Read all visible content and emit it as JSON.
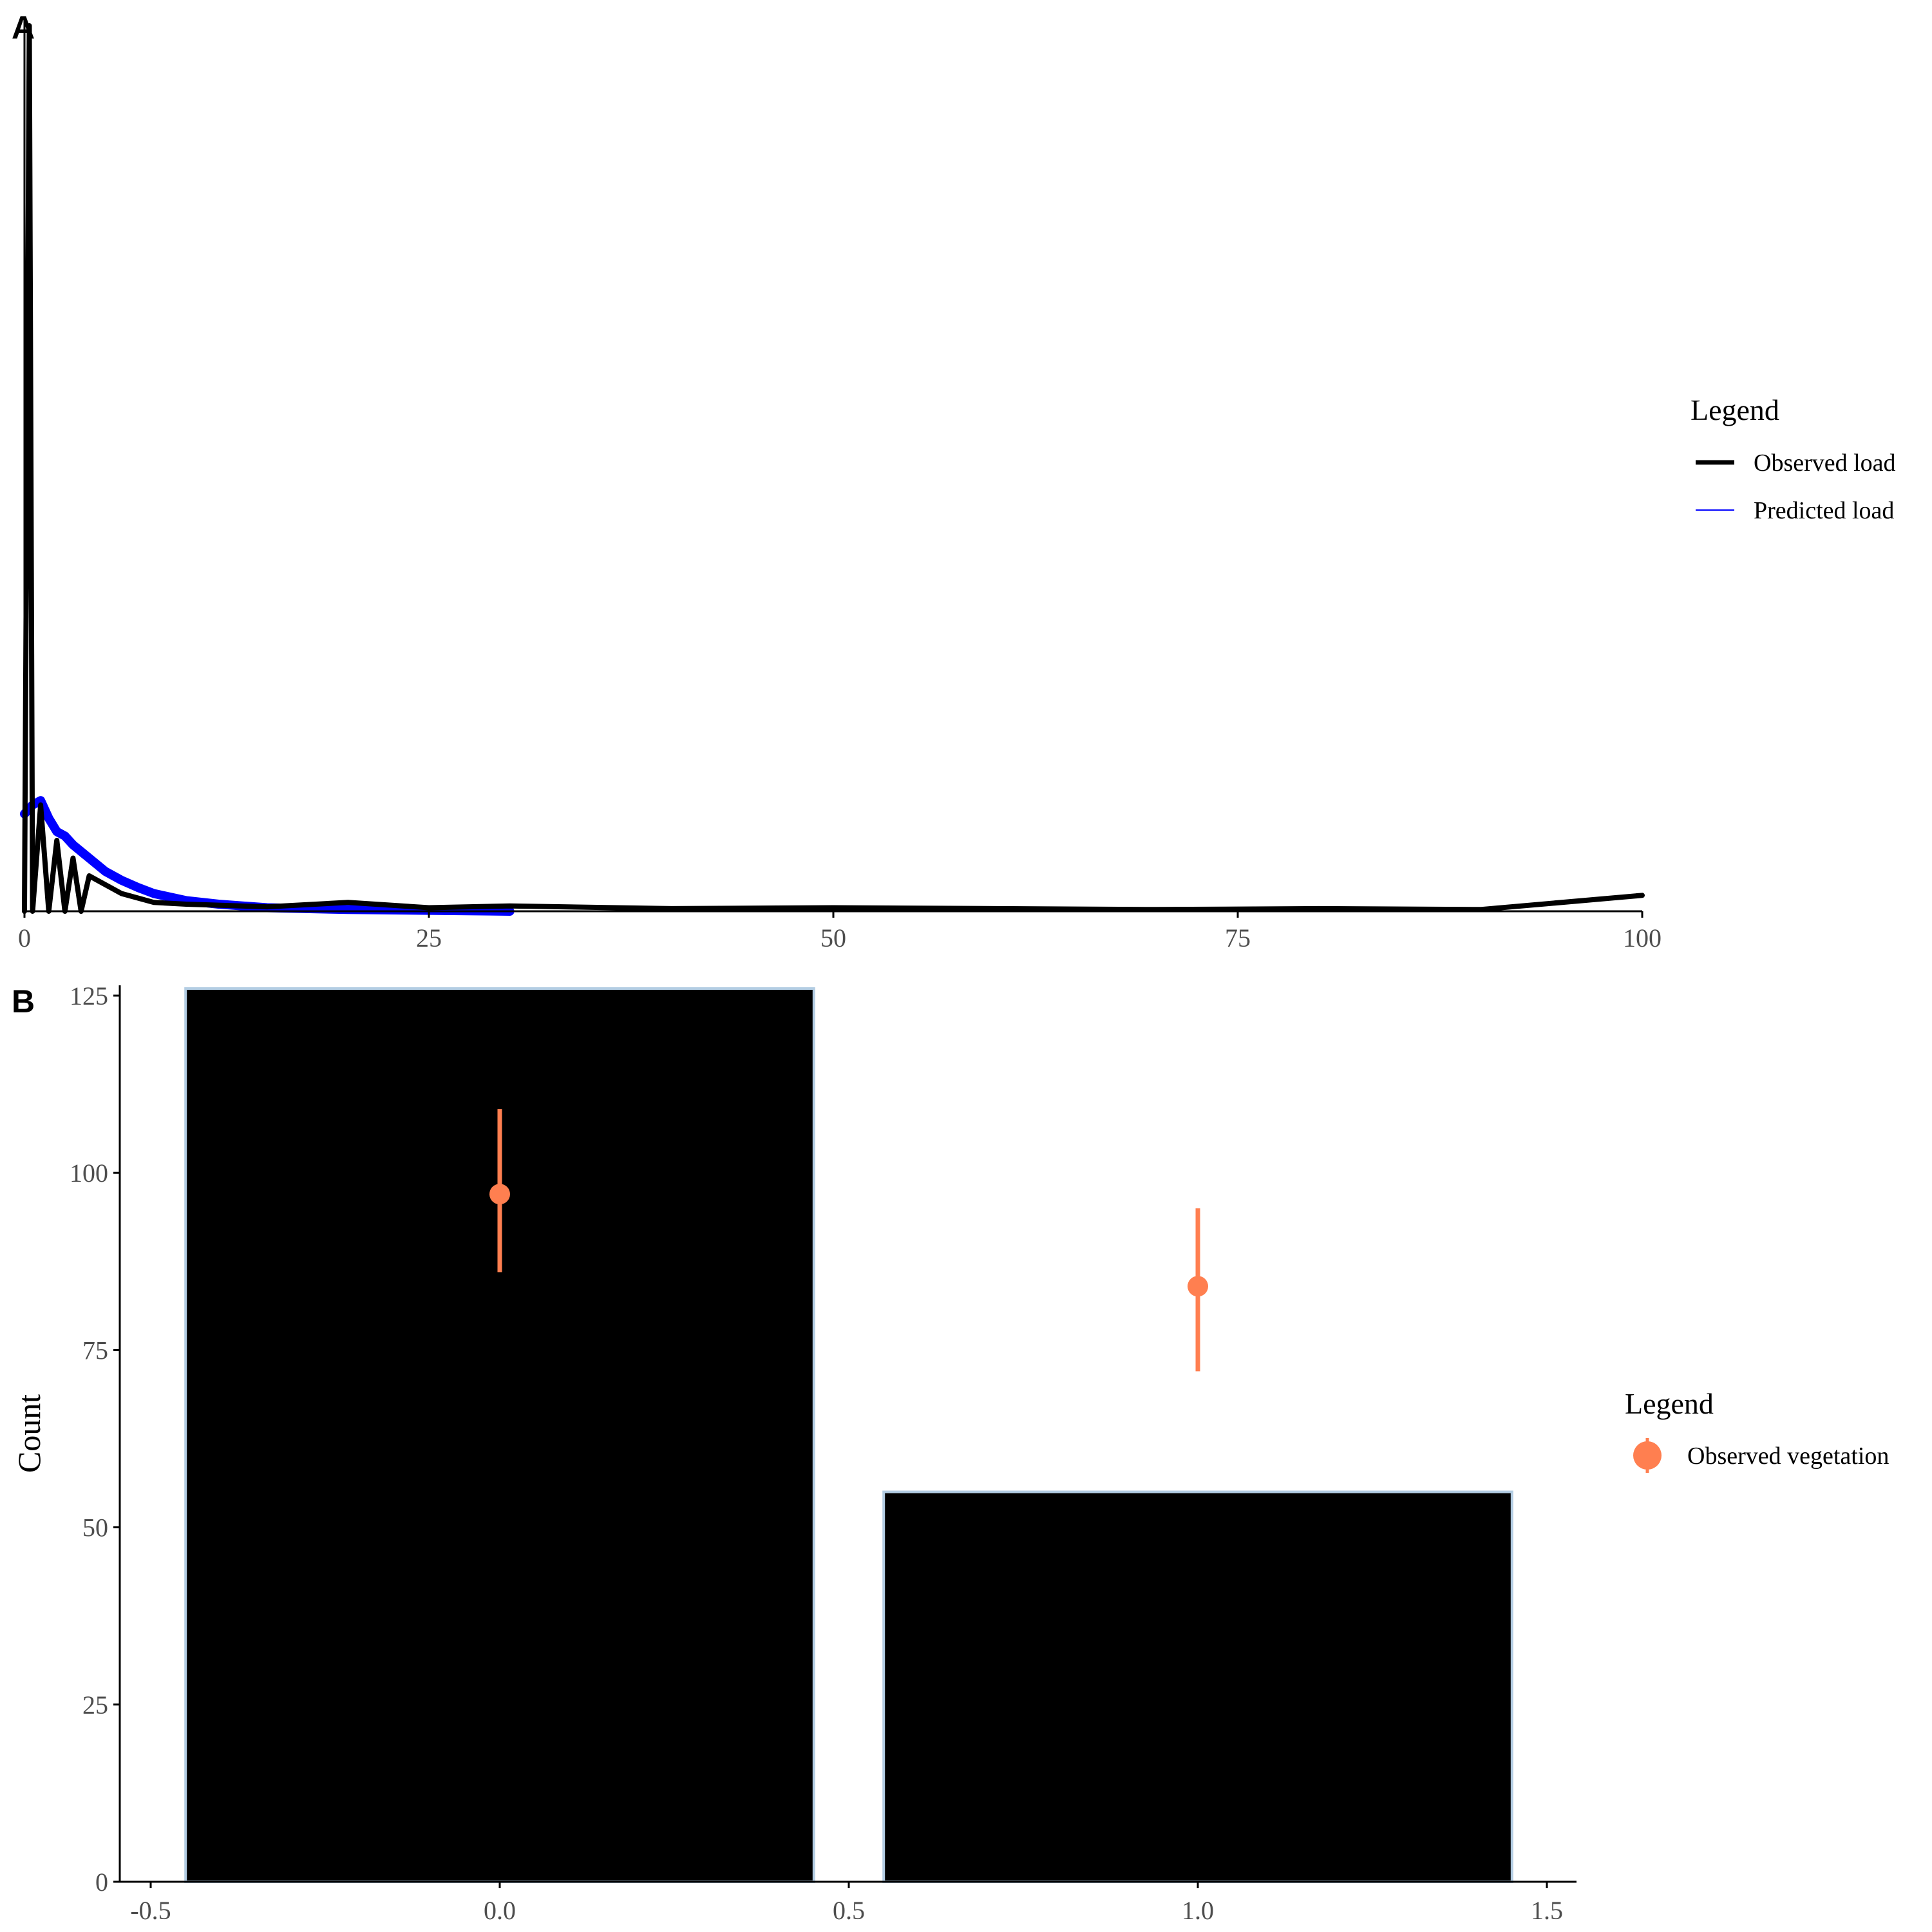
{
  "panels": {
    "a": {
      "tag": "A"
    },
    "b": {
      "tag": "B"
    }
  },
  "colors": {
    "observed": "#000000",
    "predicted": "#0000ff",
    "vegetation": "#ff7f50",
    "bar_fill": "#000000",
    "bar_outline": "#b3cde3",
    "tick_text": "#4d4d4d"
  },
  "chart_data": [
    {
      "type": "line",
      "panel": "A",
      "title": "",
      "xlabel": "",
      "ylabel": "",
      "xlim": [
        0,
        100
      ],
      "ylim": [
        0,
        1
      ],
      "x_ticks": [
        "0",
        "25",
        "50",
        "75",
        "100"
      ],
      "y_ticks": [],
      "grid": false,
      "legend": {
        "title": "Legend",
        "position": "right"
      },
      "series": [
        {
          "name": "Observed load",
          "x": [
            0,
            0.3,
            0.5,
            1,
            1.5,
            2,
            2.5,
            3,
            3.5,
            4,
            5,
            6,
            7,
            8,
            10,
            15,
            20,
            25,
            30,
            40,
            50,
            60,
            70,
            80,
            90,
            100
          ],
          "y": [
            0,
            1.0,
            0.0,
            0.12,
            0.0,
            0.08,
            0.0,
            0.06,
            0.0,
            0.04,
            0.03,
            0.02,
            0.015,
            0.01,
            0.008,
            0.005,
            0.01,
            0.004,
            0.006,
            0.003,
            0.004,
            0.003,
            0.002,
            0.003,
            0.002,
            0.018
          ]
        },
        {
          "name": "Predicted load",
          "x": [
            0,
            0.5,
            1,
            1.5,
            2,
            2.5,
            3,
            4,
            5,
            6,
            7,
            8,
            10,
            12,
            15,
            20,
            25,
            30
          ],
          "y": [
            0.11,
            0.12,
            0.125,
            0.105,
            0.09,
            0.085,
            0.075,
            0.06,
            0.045,
            0.035,
            0.027,
            0.02,
            0.012,
            0.008,
            0.004,
            0.002,
            0.001,
            0.0
          ]
        }
      ]
    },
    {
      "type": "bar",
      "panel": "B",
      "title": "",
      "xlabel": "",
      "ylabel": "Count",
      "xlim": [
        -0.5,
        1.5
      ],
      "ylim": [
        0,
        126
      ],
      "x_ticks": [
        "-0.5",
        "0.0",
        "0.5",
        "1.0",
        "1.5"
      ],
      "y_ticks": [
        "0",
        "25",
        "50",
        "75",
        "100",
        "125"
      ],
      "grid": false,
      "legend": {
        "title": "Legend",
        "position": "right"
      },
      "bars": [
        {
          "x": 0,
          "value": 126
        },
        {
          "x": 1,
          "value": 55
        }
      ],
      "series": [
        {
          "name": "Observed vegetation",
          "points": [
            {
              "x": 0,
              "y": 97,
              "ymin": 86,
              "ymax": 109
            },
            {
              "x": 1,
              "y": 84,
              "ymin": 72,
              "ymax": 95
            }
          ]
        }
      ]
    }
  ]
}
